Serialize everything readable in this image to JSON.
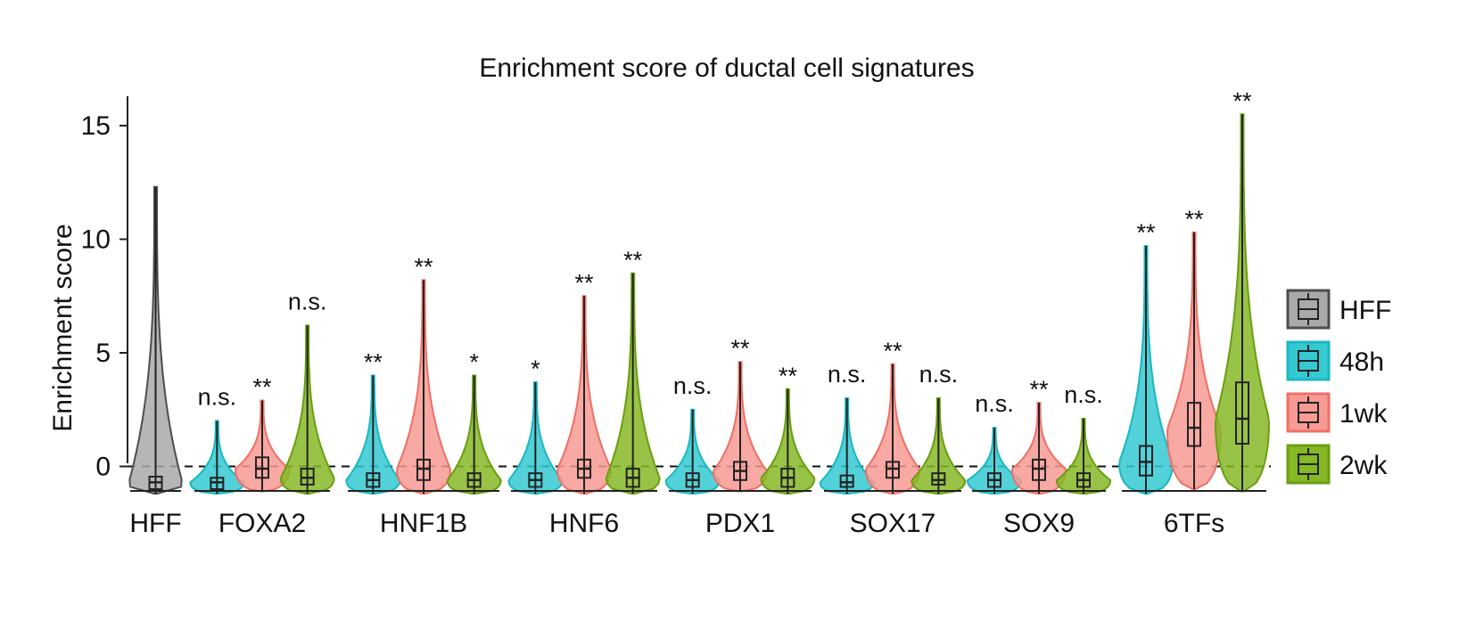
{
  "chart_data": {
    "type": "violin",
    "title": "Enrichment score of ductal cell signatures",
    "ylabel": "Enrichment score",
    "xlabel": "",
    "ylim": [
      -1.8,
      16.3
    ],
    "yticks": [
      0,
      5,
      10,
      15
    ],
    "reference_line": {
      "y": 0,
      "style": "dashed"
    },
    "legend": {
      "position": "right",
      "entries": [
        {
          "name": "HFF",
          "color": "#a9a9a9",
          "edge": "#4d4d4d"
        },
        {
          "name": "48h",
          "color": "#35c9d2",
          "edge": "#1bb7c0"
        },
        {
          "name": "1wk",
          "color": "#f79a93",
          "edge": "#ef6f66"
        },
        {
          "name": "2wk",
          "color": "#86b826",
          "edge": "#6a9e12"
        }
      ]
    },
    "groups": [
      {
        "label": "HFF",
        "violins": [
          {
            "condition": "HFF",
            "min": -1.2,
            "max": 12.3,
            "q1": -1.0,
            "median": -0.7,
            "q3": -0.45,
            "sig": ""
          }
        ]
      },
      {
        "label": "FOXA2",
        "violins": [
          {
            "condition": "48h",
            "min": -1.2,
            "max": 2.0,
            "q1": -1.0,
            "median": -0.7,
            "q3": -0.5,
            "sig": "n.s."
          },
          {
            "condition": "1wk",
            "min": -1.1,
            "max": 2.9,
            "q1": -0.5,
            "median": -0.1,
            "q3": 0.4,
            "sig": "**"
          },
          {
            "condition": "2wk",
            "min": -1.2,
            "max": 6.2,
            "q1": -0.8,
            "median": -0.5,
            "q3": -0.1,
            "sig": "n.s."
          }
        ]
      },
      {
        "label": "HNF1B",
        "violins": [
          {
            "condition": "48h",
            "min": -1.2,
            "max": 4.0,
            "q1": -0.9,
            "median": -0.6,
            "q3": -0.3,
            "sig": "**"
          },
          {
            "condition": "1wk",
            "min": -1.2,
            "max": 8.2,
            "q1": -0.6,
            "median": -0.1,
            "q3": 0.3,
            "sig": "**"
          },
          {
            "condition": "2wk",
            "min": -1.2,
            "max": 4.0,
            "q1": -0.9,
            "median": -0.6,
            "q3": -0.3,
            "sig": "*"
          }
        ]
      },
      {
        "label": "HNF6",
        "violins": [
          {
            "condition": "48h",
            "min": -1.2,
            "max": 3.7,
            "q1": -0.9,
            "median": -0.6,
            "q3": -0.3,
            "sig": "*"
          },
          {
            "condition": "1wk",
            "min": -1.2,
            "max": 7.5,
            "q1": -0.5,
            "median": -0.1,
            "q3": 0.3,
            "sig": "**"
          },
          {
            "condition": "2wk",
            "min": -1.2,
            "max": 8.5,
            "q1": -0.9,
            "median": -0.5,
            "q3": -0.1,
            "sig": "**"
          }
        ]
      },
      {
        "label": "PDX1",
        "violins": [
          {
            "condition": "48h",
            "min": -1.2,
            "max": 2.5,
            "q1": -0.9,
            "median": -0.6,
            "q3": -0.3,
            "sig": "n.s."
          },
          {
            "condition": "1wk",
            "min": -1.1,
            "max": 4.6,
            "q1": -0.6,
            "median": -0.2,
            "q3": 0.2,
            "sig": "**"
          },
          {
            "condition": "2wk",
            "min": -1.2,
            "max": 3.4,
            "q1": -0.9,
            "median": -0.5,
            "q3": -0.1,
            "sig": "**"
          }
        ]
      },
      {
        "label": "SOX17",
        "violins": [
          {
            "condition": "48h",
            "min": -1.2,
            "max": 3.0,
            "q1": -0.9,
            "median": -0.7,
            "q3": -0.4,
            "sig": "n.s."
          },
          {
            "condition": "1wk",
            "min": -1.2,
            "max": 4.5,
            "q1": -0.5,
            "median": -0.1,
            "q3": 0.2,
            "sig": "**"
          },
          {
            "condition": "2wk",
            "min": -1.2,
            "max": 3.0,
            "q1": -0.8,
            "median": -0.6,
            "q3": -0.3,
            "sig": "n.s."
          }
        ]
      },
      {
        "label": "SOX9",
        "violins": [
          {
            "condition": "48h",
            "min": -1.2,
            "max": 1.7,
            "q1": -0.9,
            "median": -0.6,
            "q3": -0.3,
            "sig": "n.s."
          },
          {
            "condition": "1wk",
            "min": -1.2,
            "max": 2.8,
            "q1": -0.6,
            "median": -0.1,
            "q3": 0.3,
            "sig": "**"
          },
          {
            "condition": "2wk",
            "min": -1.2,
            "max": 2.1,
            "q1": -0.9,
            "median": -0.6,
            "q3": -0.3,
            "sig": "n.s."
          }
        ]
      },
      {
        "label": "6TFs",
        "violins": [
          {
            "condition": "48h",
            "min": -1.2,
            "max": 9.7,
            "q1": -0.4,
            "median": 0.2,
            "q3": 0.9,
            "sig": "**"
          },
          {
            "condition": "1wk",
            "min": -1.0,
            "max": 10.3,
            "q1": 0.9,
            "median": 1.7,
            "q3": 2.8,
            "sig": "**"
          },
          {
            "condition": "2wk",
            "min": -1.1,
            "max": 15.5,
            "q1": 1.0,
            "median": 2.1,
            "q3": 3.7,
            "sig": "**"
          }
        ]
      }
    ]
  }
}
